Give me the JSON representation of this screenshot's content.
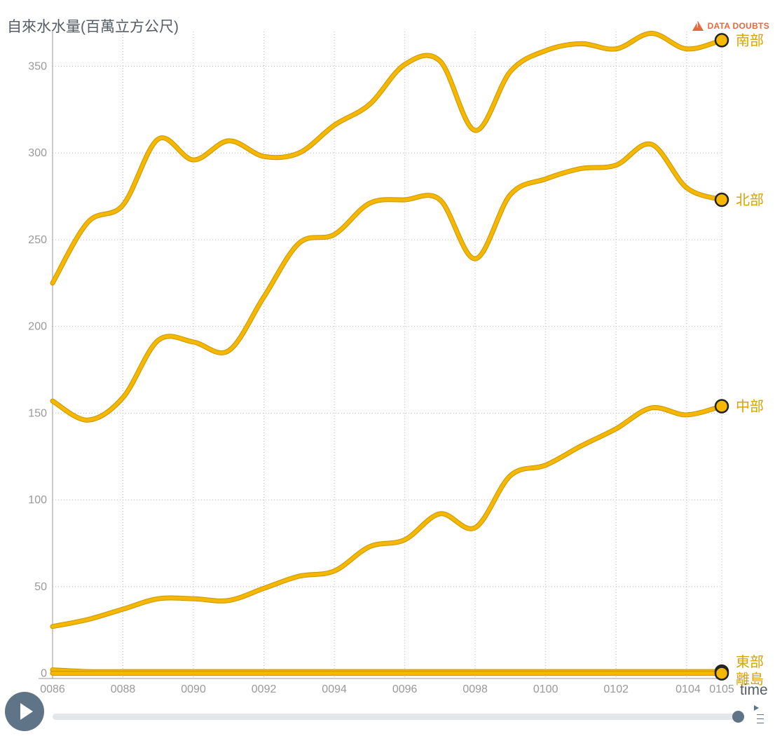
{
  "header": {
    "doubts_label": "DATA DOUBTS",
    "doubts_icon": "warning-icon",
    "accent_color": "#e46a3d"
  },
  "controls": {
    "time_label": "time",
    "play_icon": "play-icon",
    "speed_icon": "speed-icon",
    "slider_value": "0105",
    "slider_fraction": 1.0
  },
  "chart_data": {
    "type": "line",
    "title": "自來水水量(百萬立方公尺)",
    "ylabel": "自來水水量(百萬立方公尺)",
    "xlabel": "time",
    "x": [
      "0086",
      "0087",
      "0088",
      "0089",
      "0090",
      "0091",
      "0092",
      "0093",
      "0094",
      "0095",
      "0096",
      "0097",
      "0098",
      "0099",
      "0100",
      "0101",
      "0102",
      "0103",
      "0104",
      "0105"
    ],
    "xticks": [
      "0086",
      "0088",
      "0090",
      "0092",
      "0094",
      "0096",
      "0098",
      "0100",
      "0102",
      "0104",
      "0105"
    ],
    "yticks": [
      0,
      50,
      100,
      150,
      200,
      250,
      300,
      350
    ],
    "ylim": [
      -3,
      370
    ],
    "grid": true,
    "line_color": "#f5b700",
    "series": [
      {
        "name": "南部",
        "values": [
          225,
          260,
          270,
          308,
          296,
          307,
          298,
          300,
          316,
          328,
          351,
          353,
          313,
          347,
          359,
          363,
          360,
          369,
          360,
          365
        ]
      },
      {
        "name": "北部",
        "values": [
          157,
          146,
          159,
          192,
          191,
          186,
          217,
          248,
          253,
          271,
          273,
          273,
          239,
          276,
          285,
          291,
          293,
          305,
          280,
          273
        ]
      },
      {
        "name": "中部",
        "values": [
          27,
          31,
          37,
          43,
          43,
          42,
          49,
          56,
          59,
          73,
          77,
          92,
          84,
          114,
          120,
          131,
          141,
          153,
          149,
          154
        ]
      },
      {
        "name": "東部",
        "values": [
          2,
          1,
          1,
          1,
          1,
          1,
          1,
          1,
          1,
          1,
          1,
          1,
          1,
          1,
          1,
          1,
          1,
          1,
          1,
          1
        ]
      },
      {
        "name": "離島",
        "values": [
          0,
          0,
          0,
          0,
          0,
          0,
          0,
          0,
          0,
          0,
          0,
          0,
          0,
          0,
          0,
          0,
          0,
          0,
          0,
          0
        ]
      }
    ]
  }
}
